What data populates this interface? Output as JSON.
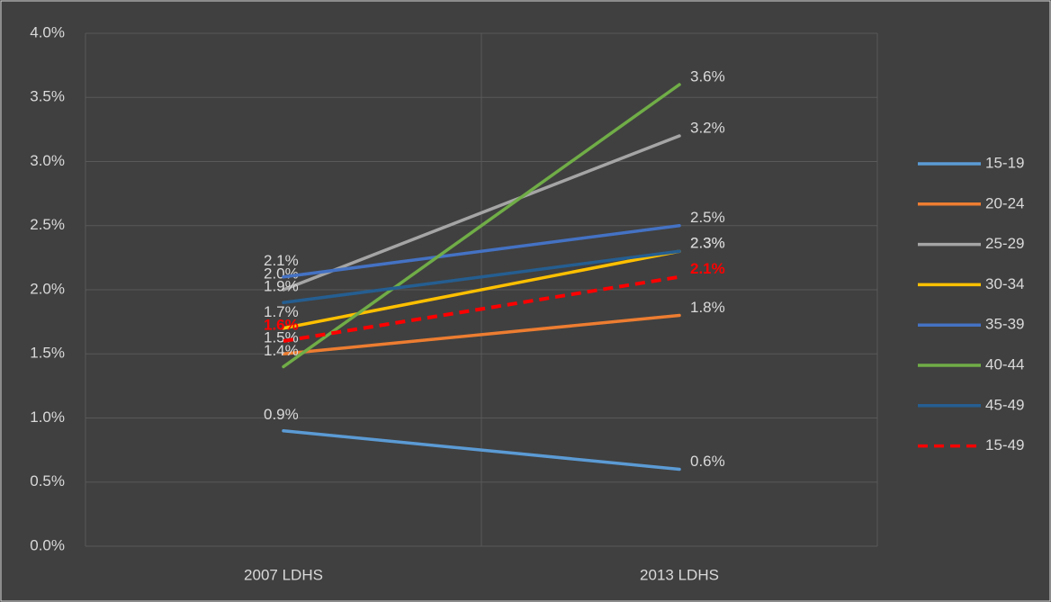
{
  "chart_data": {
    "type": "line",
    "categories": [
      "2007 LDHS",
      "2013 LDHS"
    ],
    "series": [
      {
        "name": "15-19",
        "color": "#5b9bd5",
        "values": [
          0.9,
          0.6
        ],
        "value_labels": [
          "0.9%",
          "0.6%"
        ]
      },
      {
        "name": "20-24",
        "color": "#ed7d31",
        "values": [
          1.5,
          1.8
        ],
        "value_labels": [
          "1.5%",
          "1.8%"
        ]
      },
      {
        "name": "25-29",
        "color": "#a5a5a5",
        "values": [
          2.0,
          3.2
        ],
        "value_labels": [
          "2.0%",
          "3.2%"
        ]
      },
      {
        "name": "30-34",
        "color": "#ffc000",
        "values": [
          1.7,
          2.3
        ],
        "value_labels": [
          "1.7%",
          "2.3%"
        ]
      },
      {
        "name": "35-39",
        "color": "#4472c4",
        "values": [
          2.1,
          2.5
        ],
        "value_labels": [
          "2.1%",
          "2.5%"
        ]
      },
      {
        "name": "40-44",
        "color": "#70ad47",
        "values": [
          1.4,
          3.6
        ],
        "value_labels": [
          "1.4%",
          "3.6%"
        ]
      },
      {
        "name": "45-49",
        "color": "#255e91",
        "values": [
          1.9,
          2.3
        ],
        "value_labels": [
          "1.9%",
          "2.3%"
        ]
      },
      {
        "name": "15-49",
        "color": "#ff0000",
        "values": [
          1.6,
          2.1
        ],
        "value_labels": [
          "1.6%",
          "2.1%"
        ],
        "line_style": "dashed"
      }
    ],
    "ylim": [
      0,
      4
    ],
    "yticks": [
      {
        "value": 0,
        "label": "0.0%"
      },
      {
        "value": 0.5,
        "label": "0.5%"
      },
      {
        "value": 1,
        "label": "1.0%"
      },
      {
        "value": 1.5,
        "label": "1.5%"
      },
      {
        "value": 2,
        "label": "2.0%"
      },
      {
        "value": 2.5,
        "label": "2.5%"
      },
      {
        "value": 3,
        "label": "3.0%"
      },
      {
        "value": 3.5,
        "label": "3.5%"
      },
      {
        "value": 4,
        "label": "4.0%"
      }
    ],
    "grid": true,
    "legend": "right"
  }
}
